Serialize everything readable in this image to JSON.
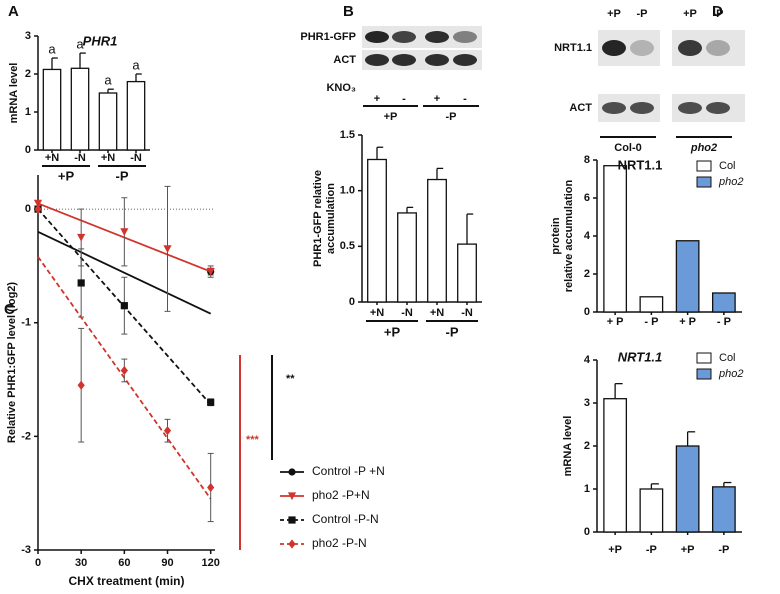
{
  "chart_data": [
    {
      "type": "bar",
      "panel": "A",
      "title": "PHR1",
      "ylabel": [
        "mRNA level"
      ],
      "categories": [
        "+N",
        "-N",
        "+N",
        "-N"
      ],
      "group_labels": [
        "+P",
        "-P"
      ],
      "values": [
        2.12,
        2.15,
        1.5,
        1.8
      ],
      "errors": [
        0.3,
        0.4,
        0.1,
        0.2
      ],
      "annotations": [
        "a",
        "a",
        "a",
        "a"
      ],
      "color": "#ffffff",
      "ylim": [
        0,
        3
      ],
      "yticks": [
        0,
        1,
        2,
        3
      ]
    },
    {
      "type": "bar",
      "panel": "B",
      "blot": {
        "rows": [
          "PHR1-GFP",
          "ACT"
        ],
        "treatment": "KNO₃",
        "lanes": [
          "+",
          "-",
          "+",
          "-"
        ],
        "groups": [
          "+P",
          "-P"
        ]
      },
      "ylabel": [
        "PHR1-GFP relative",
        "accumulation"
      ],
      "categories": [
        "+N",
        "-N",
        "+N",
        "-N"
      ],
      "group_labels": [
        "+P",
        "-P"
      ],
      "values": [
        1.28,
        0.8,
        1.1,
        0.52
      ],
      "errors": [
        0.11,
        0.05,
        0.1,
        0.27
      ],
      "color": "#ffffff",
      "ylim": [
        0,
        1.5
      ],
      "yticks": [
        0,
        0.5,
        {
          "value": 1,
          "label": "1.0"
        },
        1.5
      ]
    },
    {
      "type": "line",
      "panel": "C",
      "xlabel": "CHX treatment (min)",
      "ylabel": [
        "Relative PHR1:GFP level (log2)"
      ],
      "x": [
        0,
        30,
        60,
        90,
        120
      ],
      "xlim": [
        0,
        123
      ],
      "ylim": [
        -3,
        0.3
      ],
      "xticks": [
        0,
        30,
        60,
        90,
        120
      ],
      "yticks": [
        0,
        -1,
        -2,
        -3
      ],
      "refline": 0,
      "annotations": [
        {
          "text": "**",
          "color": "#111111"
        },
        {
          "text": "***",
          "color": "#d0342c"
        }
      ],
      "series": [
        {
          "name": "Control -P +N",
          "color": "#111111",
          "marker": "circle",
          "dash": false,
          "values": [
            0,
            null,
            null,
            null,
            -0.55
          ],
          "errors": [
            0,
            0,
            0,
            0,
            0.03
          ],
          "fit": [
            -0.2,
            -0.92
          ]
        },
        {
          "name": "pho2 -P+N",
          "color": "#d0342c",
          "marker": "triangle",
          "dash": false,
          "values": [
            0.05,
            -0.25,
            -0.2,
            -0.35,
            -0.55
          ],
          "errors": [
            0,
            0.25,
            0.3,
            0.55,
            0.05
          ],
          "fit": [
            0.05,
            -0.55
          ]
        },
        {
          "name": "Control -P-N",
          "color": "#111111",
          "marker": "square",
          "dash": true,
          "values": [
            0,
            -0.65,
            -0.85,
            null,
            -1.7
          ],
          "errors": [
            0,
            0.3,
            0.25,
            0,
            0.03
          ],
          "fit": [
            0,
            -1.72
          ]
        },
        {
          "name": "pho2 -P-N",
          "color": "#d0342c",
          "marker": "diamond",
          "dash": true,
          "values": [
            0,
            -1.55,
            -1.42,
            -1.95,
            -2.45
          ],
          "errors": [
            0,
            0.5,
            0.1,
            0.1,
            0.3
          ],
          "fit": [
            -0.42,
            -2.55
          ]
        }
      ]
    },
    {
      "type": "bar",
      "panel": "D",
      "blot": {
        "rows": [
          "NRT1.1",
          "ACT"
        ],
        "lanes": [
          "+P",
          "-P",
          "+P",
          "-P"
        ],
        "groups": [
          "Col-0",
          "pho2"
        ]
      },
      "title": "NRT1.1",
      "ylabel": [
        "protein",
        "relative accumulation"
      ],
      "categories": [
        "+ P",
        "- P",
        "+ P",
        "- P"
      ],
      "series": [
        {
          "name": "Col",
          "color": "#ffffff",
          "values": [
            7.7,
            0.8,
            null,
            null
          ]
        },
        {
          "name": "pho2",
          "color": "#6a9bd8",
          "values": [
            null,
            null,
            3.75,
            1.0
          ]
        }
      ],
      "ylim": [
        0,
        8
      ],
      "yticks": [
        0,
        2,
        4,
        6,
        8
      ]
    },
    {
      "type": "bar",
      "title": "NRT1.1",
      "ylabel": [
        "mRNA level"
      ],
      "categories": [
        "+P",
        "-P",
        "+P",
        "-P"
      ],
      "series": [
        {
          "name": "Col",
          "color": "#ffffff",
          "values": [
            3.1,
            1.0,
            null,
            null
          ],
          "errors": [
            0.35,
            0.12,
            null,
            null
          ]
        },
        {
          "name": "pho2",
          "color": "#6a9bd8",
          "values": [
            null,
            null,
            2.0,
            1.05
          ],
          "errors": [
            null,
            null,
            0.33,
            0.1
          ]
        }
      ],
      "ylim": [
        0,
        4
      ],
      "yticks": [
        0,
        1,
        2,
        3,
        4
      ]
    }
  ]
}
